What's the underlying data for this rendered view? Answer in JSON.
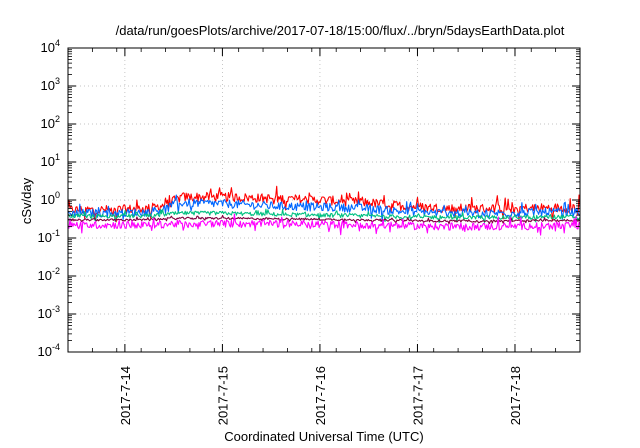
{
  "chart_data": {
    "type": "line",
    "title": "/data/run/goesPlots/archive/2017-07-18/15:00/flux/../bryn/5daysEarthData.plot",
    "xlabel": "Coordinated Universal Time (UTC)",
    "ylabel": "cSv/day",
    "x_ticks": [
      "2017-7-14",
      "2017-7-15",
      "2017-7-16",
      "2017-7-17",
      "2017-7-18"
    ],
    "xlim": [
      "2017-07-13 10:00",
      "2017-07-18 16:00"
    ],
    "y_scale": "log",
    "ylim": [
      0.0001,
      10000
    ],
    "y_ticks": [
      {
        "base": "10",
        "exp": "-4"
      },
      {
        "base": "10",
        "exp": "-3"
      },
      {
        "base": "10",
        "exp": "-2"
      },
      {
        "base": "10",
        "exp": "-1"
      },
      {
        "base": "10",
        "exp": "0"
      },
      {
        "base": "10",
        "exp": "1"
      },
      {
        "base": "10",
        "exp": "2"
      },
      {
        "base": "10",
        "exp": "3"
      },
      {
        "base": "10",
        "exp": "4"
      }
    ],
    "grid": true,
    "legend": "none",
    "x": [
      "2017-07-13 10:00",
      "2017-07-13 20:00",
      "2017-07-14 06:00",
      "2017-07-14 10:00",
      "2017-07-14 14:00",
      "2017-07-15 00:00",
      "2017-07-15 12:00",
      "2017-07-16 00:00",
      "2017-07-16 12:00",
      "2017-07-16 20:00",
      "2017-07-17 08:00",
      "2017-07-17 20:00",
      "2017-07-18 08:00",
      "2017-07-18 16:00"
    ],
    "series": [
      {
        "color": "#ff0000",
        "values": [
          0.55,
          0.55,
          0.6,
          0.75,
          1.2,
          1.2,
          1.1,
          1.0,
          0.85,
          0.7,
          0.6,
          0.6,
          0.62,
          0.62
        ]
      },
      {
        "color": "#0066ff",
        "values": [
          0.45,
          0.45,
          0.48,
          0.6,
          0.85,
          0.8,
          0.7,
          0.65,
          0.6,
          0.5,
          0.45,
          0.45,
          0.48,
          0.48
        ]
      },
      {
        "color": "#00c080",
        "values": [
          0.38,
          0.38,
          0.38,
          0.42,
          0.45,
          0.45,
          0.42,
          0.4,
          0.38,
          0.36,
          0.35,
          0.35,
          0.36,
          0.36
        ]
      },
      {
        "color": "#800040",
        "values": [
          0.3,
          0.3,
          0.3,
          0.32,
          0.33,
          0.33,
          0.32,
          0.31,
          0.3,
          0.29,
          0.28,
          0.28,
          0.29,
          0.29
        ]
      },
      {
        "color": "#ff00ff",
        "values": [
          0.22,
          0.22,
          0.22,
          0.23,
          0.24,
          0.24,
          0.24,
          0.23,
          0.22,
          0.21,
          0.2,
          0.2,
          0.21,
          0.21
        ]
      }
    ]
  }
}
